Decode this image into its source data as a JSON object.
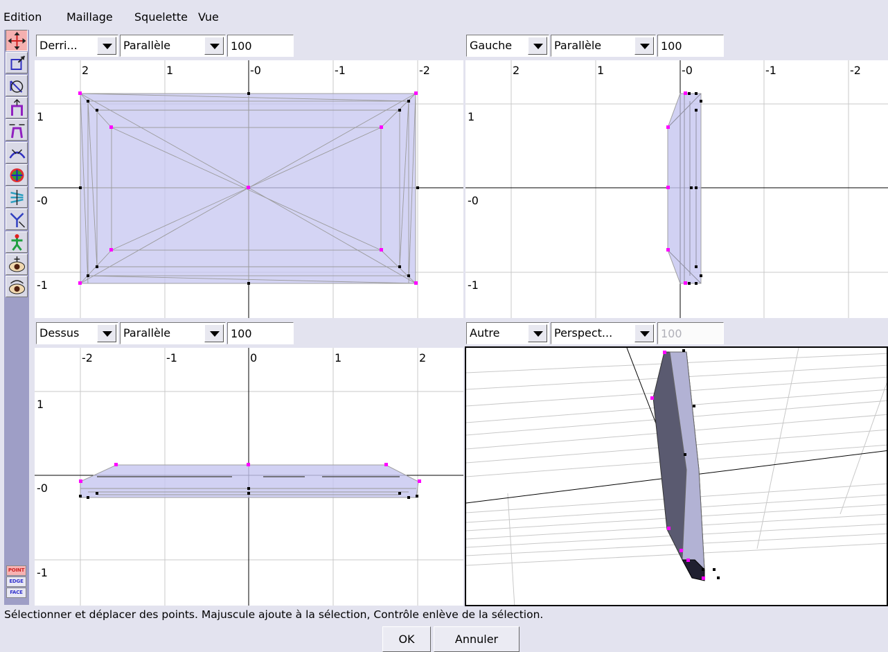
{
  "menu": {
    "items": [
      "Edition",
      "Maillage",
      "Squelette",
      "Vue"
    ]
  },
  "toolbar": {
    "tools": [
      {
        "icon": "move-points-icon",
        "active": true
      },
      {
        "icon": "scale-points-icon"
      },
      {
        "icon": "rotate-points-icon"
      },
      {
        "icon": "extrude-points-icon"
      },
      {
        "icon": "taper-points-icon"
      },
      {
        "icon": "bend-points-icon"
      },
      {
        "icon": "twist-points-icon"
      },
      {
        "icon": "skew-points-icon"
      },
      {
        "icon": "move-skeleton-icon"
      },
      {
        "icon": "skeleton-pose-icon"
      },
      {
        "icon": "move-viewpoint-icon"
      },
      {
        "icon": "rotate-viewpoint-icon"
      }
    ],
    "selection_modes": [
      "POINT",
      "EDGE",
      "FACE"
    ],
    "active_mode": "POINT"
  },
  "viewports": {
    "top_left": {
      "view": "Derri...",
      "projection": "Parallèle",
      "scale": "100",
      "x_ticks": [
        "2",
        "1",
        "-0",
        "-1",
        "-2"
      ],
      "y_ticks": [
        "1",
        "-0",
        "-1"
      ]
    },
    "top_right": {
      "view": "Gauche",
      "projection": "Parallèle",
      "scale": "100",
      "x_ticks": [
        "2",
        "1",
        "-0",
        "-1",
        "-2"
      ],
      "y_ticks": [
        "1",
        "-0",
        "-1"
      ]
    },
    "bottom_left": {
      "view": "Dessus",
      "projection": "Parallèle",
      "scale": "100",
      "x_ticks": [
        "-2",
        "-1",
        "0",
        "1",
        "2"
      ],
      "y_ticks": [
        "1",
        "-0",
        "-1"
      ]
    },
    "bottom_right": {
      "view": "Autre",
      "projection": "Perspect...",
      "scale": "100",
      "scale_disabled": true
    }
  },
  "colors": {
    "mesh_fill": "#c6c6f0",
    "selected_vertex": "#ff00ff",
    "vertex": "#000000",
    "grid": "#c8c8c8",
    "toolbar_bg": "#9e9ec6"
  },
  "status": "Sélectionner et déplacer des points.  Majuscule ajoute à la sélection, Contrôle enlève de la sélection.",
  "buttons": {
    "ok": "OK",
    "cancel": "Annuler"
  }
}
